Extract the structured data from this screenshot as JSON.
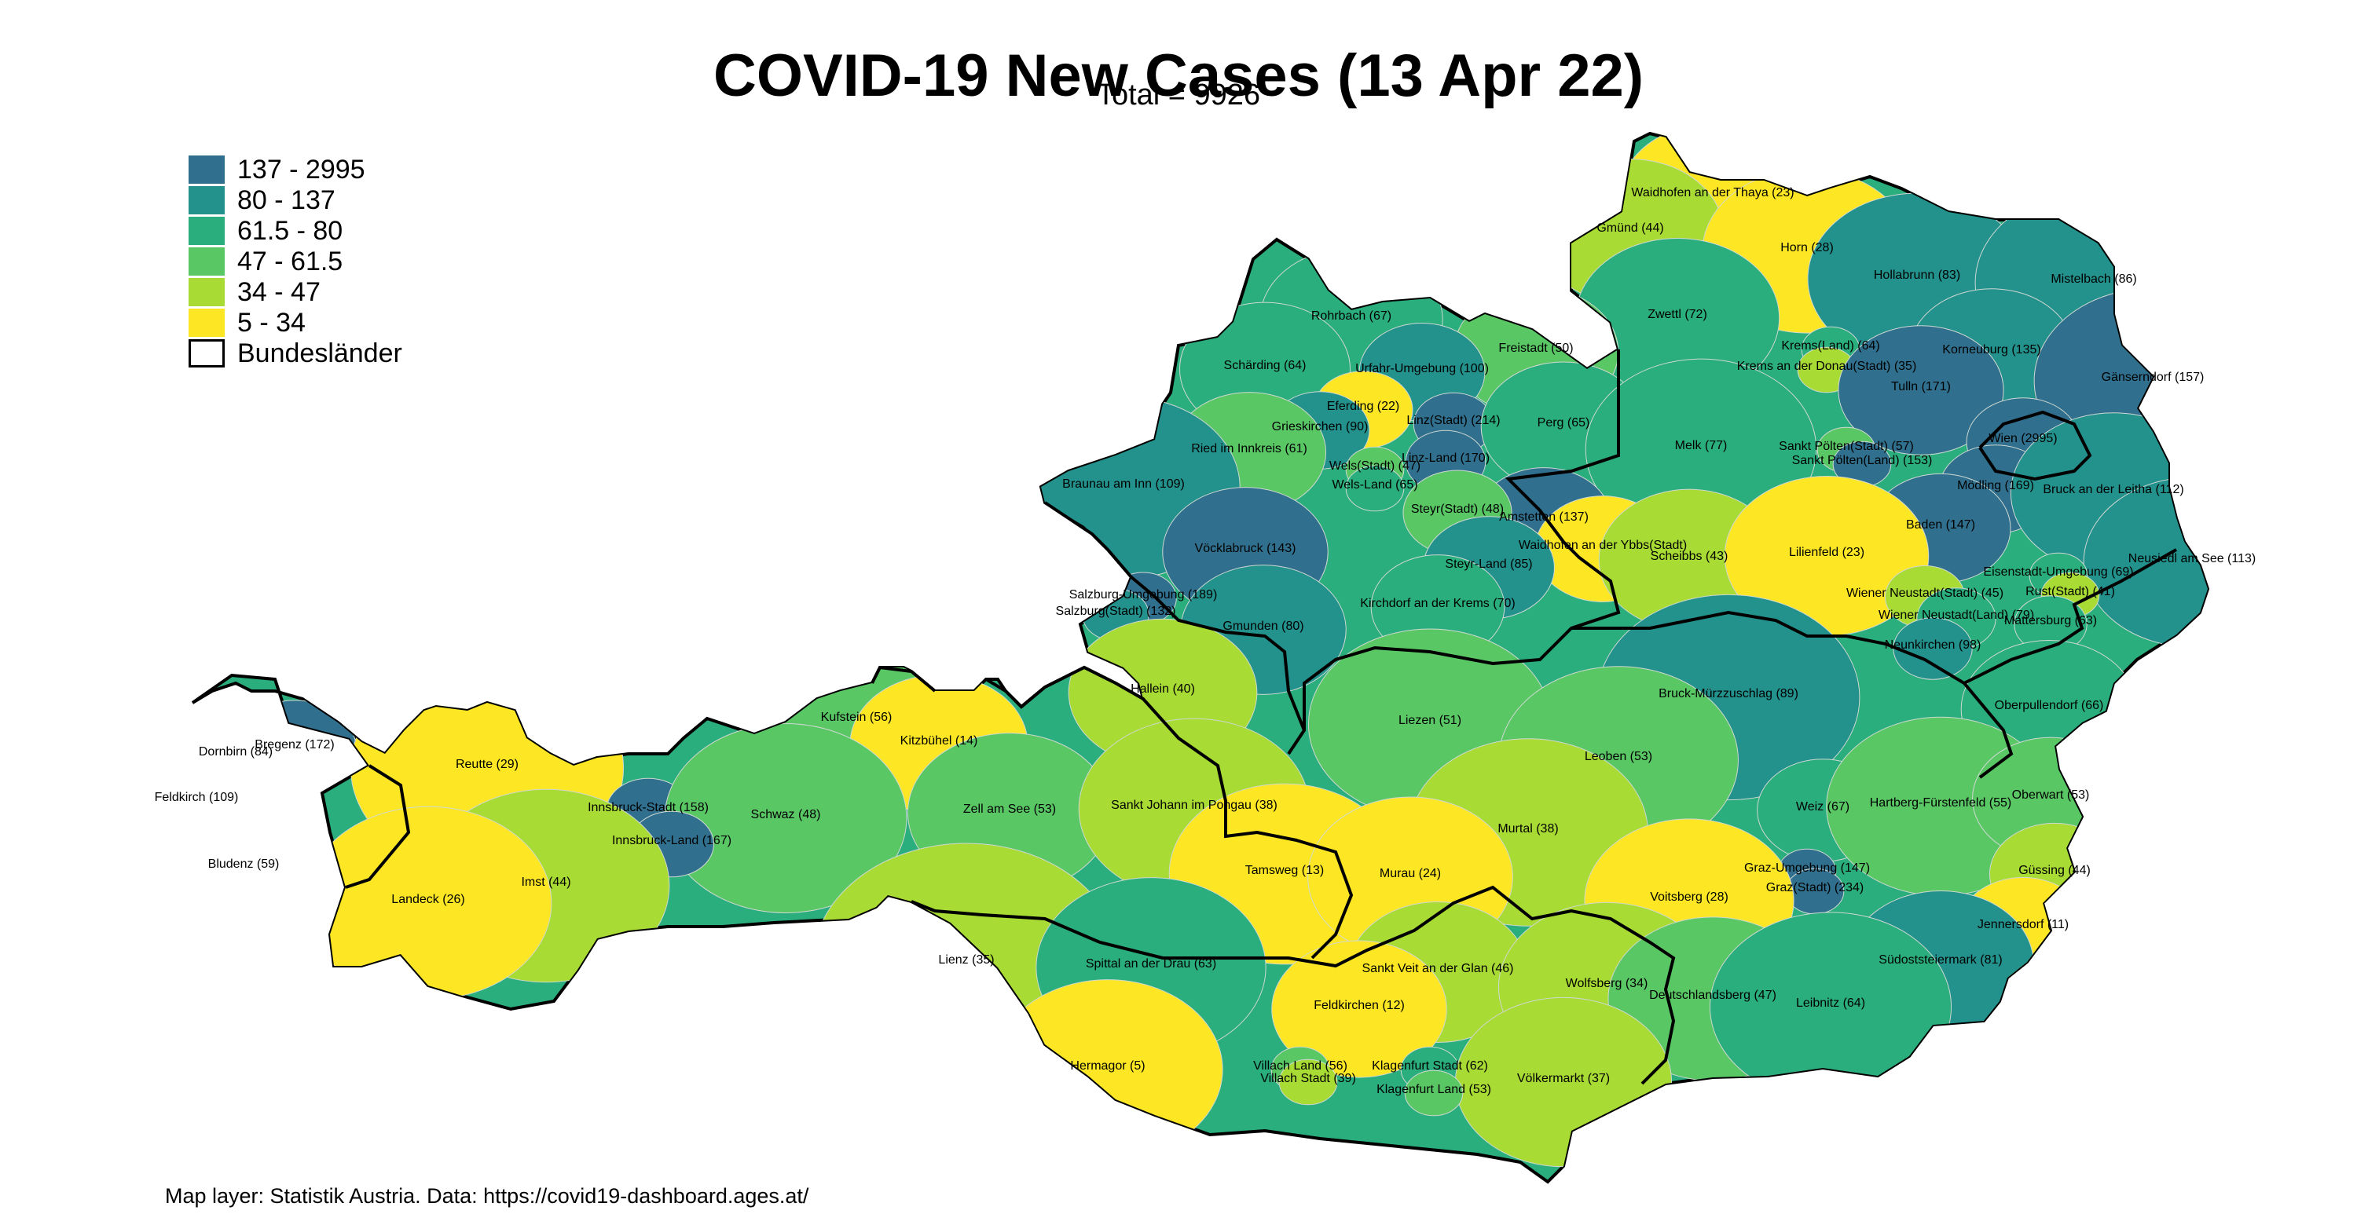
{
  "title": "COVID-19 New Cases (13 Apr 22)",
  "subtitle": "Total = 9926",
  "caption": "Map layer: Statistik Austria. Data: https://covid19-dashboard.ages.at/",
  "legend": [
    {
      "label": "137 - 2995",
      "color": "#30708e"
    },
    {
      "label": "80 - 137",
      "color": "#23918c"
    },
    {
      "label": "61.5 - 80",
      "color": "#2aae7e"
    },
    {
      "label": "47 - 61.5",
      "color": "#5ac765"
    },
    {
      "label": "34 - 47",
      "color": "#a8db33"
    },
    {
      "label": "5 - 34",
      "color": "#fde725"
    },
    {
      "label": "Bundesländer",
      "color": "#ffffff",
      "outline": true
    }
  ],
  "districts": [
    {
      "name": "Waidhofen an der Thaya",
      "cases": 23
    },
    {
      "name": "Gmünd",
      "cases": 44
    },
    {
      "name": "Horn",
      "cases": 28
    },
    {
      "name": "Hollabrunn",
      "cases": 83
    },
    {
      "name": "Mistelbach",
      "cases": 86
    },
    {
      "name": "Zwettl",
      "cases": 72
    },
    {
      "name": "Krems(Land)",
      "cases": 64
    },
    {
      "name": "Krems an der Donau(Stadt)",
      "cases": 35
    },
    {
      "name": "Korneuburg",
      "cases": 135
    },
    {
      "name": "Gänserndorf",
      "cases": 157
    },
    {
      "name": "Tulln",
      "cases": 171
    },
    {
      "name": "Wien",
      "cases": 2995
    },
    {
      "name": "Rohrbach",
      "cases": 67
    },
    {
      "name": "Freistadt",
      "cases": 50
    },
    {
      "name": "Urfahr-Umgebung",
      "cases": 100
    },
    {
      "name": "Schärding",
      "cases": 64
    },
    {
      "name": "Eferding",
      "cases": 22
    },
    {
      "name": "Grieskirchen",
      "cases": 90
    },
    {
      "name": "Linz(Stadt)",
      "cases": 214
    },
    {
      "name": "Perg",
      "cases": 65
    },
    {
      "name": "Melk",
      "cases": 77
    },
    {
      "name": "Sankt Pölten(Stadt)",
      "cases": 57
    },
    {
      "name": "Sankt Pölten(Land)",
      "cases": 153
    },
    {
      "name": "Ried im Innkreis",
      "cases": 61
    },
    {
      "name": "Wels(Stadt)",
      "cases": 47
    },
    {
      "name": "Linz-Land",
      "cases": 170
    },
    {
      "name": "Braunau am Inn",
      "cases": 109
    },
    {
      "name": "Wels-Land",
      "cases": 65
    },
    {
      "name": "Mödling",
      "cases": 169
    },
    {
      "name": "Bruck an der Leitha",
      "cases": 112
    },
    {
      "name": "Amstetten",
      "cases": 137
    },
    {
      "name": "Steyr(Stadt)",
      "cases": 48
    },
    {
      "name": "Baden",
      "cases": 147
    },
    {
      "name": "Vöcklabruck",
      "cases": 143
    },
    {
      "name": "Waidhofen an der Ybbs(Stadt)",
      "cases": null
    },
    {
      "name": "Scheibbs",
      "cases": 43
    },
    {
      "name": "Lilienfeld",
      "cases": 23
    },
    {
      "name": "Neusiedl am See",
      "cases": 113
    },
    {
      "name": "Steyr-Land",
      "cases": 85
    },
    {
      "name": "Eisenstadt-Umgebung",
      "cases": 69
    },
    {
      "name": "Wiener Neustadt(Stadt)",
      "cases": 45
    },
    {
      "name": "Rust(Stadt)",
      "cases": 41
    },
    {
      "name": "Salzburg-Umgebung",
      "cases": 189
    },
    {
      "name": "Salzburg(Stadt)",
      "cases": 132
    },
    {
      "name": "Kirchdorf an der Krems",
      "cases": 70
    },
    {
      "name": "Wiener Neustadt(Land)",
      "cases": 79
    },
    {
      "name": "Mattersburg",
      "cases": 63
    },
    {
      "name": "Gmunden",
      "cases": 80
    },
    {
      "name": "Neunkirchen",
      "cases": 98
    },
    {
      "name": "Hallein",
      "cases": 40
    },
    {
      "name": "Bruck-Mürzzuschlag",
      "cases": 89
    },
    {
      "name": "Oberpullendorf",
      "cases": 66
    },
    {
      "name": "Kufstein",
      "cases": 56
    },
    {
      "name": "Kitzbühel",
      "cases": 14
    },
    {
      "name": "Liezen",
      "cases": 51
    },
    {
      "name": "Dornbirn",
      "cases": 84
    },
    {
      "name": "Bregenz",
      "cases": 172
    },
    {
      "name": "Leoben",
      "cases": 53
    },
    {
      "name": "Reutte",
      "cases": 29
    },
    {
      "name": "Feldkirch",
      "cases": 109
    },
    {
      "name": "Innsbruck-Stadt",
      "cases": 158
    },
    {
      "name": "Schwaz",
      "cases": 48
    },
    {
      "name": "Zell am See",
      "cases": 53
    },
    {
      "name": "Sankt Johann im Pongau",
      "cases": 38
    },
    {
      "name": "Weiz",
      "cases": 67
    },
    {
      "name": "Hartberg-Fürstenfeld",
      "cases": 55
    },
    {
      "name": "Oberwart",
      "cases": 53
    },
    {
      "name": "Innsbruck-Land",
      "cases": 167
    },
    {
      "name": "Murtal",
      "cases": 38
    },
    {
      "name": "Bludenz",
      "cases": 59
    },
    {
      "name": "Tamsweg",
      "cases": 13
    },
    {
      "name": "Murau",
      "cases": 24
    },
    {
      "name": "Graz-Umgebung",
      "cases": 147
    },
    {
      "name": "Güssing",
      "cases": 44
    },
    {
      "name": "Imst",
      "cases": 44
    },
    {
      "name": "Graz(Stadt)",
      "cases": 234
    },
    {
      "name": "Voitsberg",
      "cases": 28
    },
    {
      "name": "Landeck",
      "cases": 26
    },
    {
      "name": "Jennersdorf",
      "cases": 11
    },
    {
      "name": "Lienz",
      "cases": 35
    },
    {
      "name": "Spittal an der Drau",
      "cases": 63
    },
    {
      "name": "Sankt Veit an der Glan",
      "cases": 46
    },
    {
      "name": "Wolfsberg",
      "cases": 34
    },
    {
      "name": "Südoststeiermark",
      "cases": 81
    },
    {
      "name": "Deutschlandsberg",
      "cases": 47
    },
    {
      "name": "Feldkirchen",
      "cases": 12
    },
    {
      "name": "Leibnitz",
      "cases": 64
    },
    {
      "name": "Hermagor",
      "cases": 5
    },
    {
      "name": "Villach Land",
      "cases": 56
    },
    {
      "name": "Klagenfurt Stadt",
      "cases": 62
    },
    {
      "name": "Villach Stadt",
      "cases": 39
    },
    {
      "name": "Völkermarkt",
      "cases": 37
    },
    {
      "name": "Klagenfurt Land",
      "cases": 53
    }
  ]
}
